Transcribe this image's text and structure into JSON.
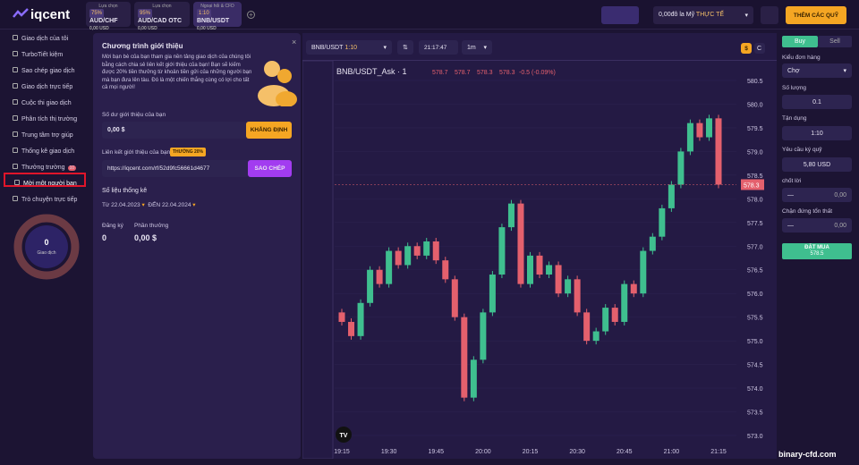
{
  "header": {
    "logo": "iqcent",
    "tabs": [
      {
        "label": "Lựa chọn",
        "badge": "75%",
        "pair": "AUD/CHF",
        "amount": "0,00 USD"
      },
      {
        "label": "Lựa chọn",
        "badge": "95%",
        "pair": "AUD/CAD OTC",
        "amount": "0,00 USD"
      },
      {
        "label": "Ngoại hối & CFD",
        "badge": "1:10",
        "pair": "BNB/USDT",
        "amount": "0,00 USD"
      }
    ],
    "balance": "0,00đô la Mỹ",
    "account": "THỰC TẾ",
    "deposit": "THÊM CÁC QUỸ"
  },
  "sidebar": {
    "items": [
      "Giao dịch của tôi",
      "TurboTiết kiệm",
      "Sao chép giao dịch",
      "Giao dịch trực tiếp",
      "Cuộc thi giao dịch",
      "Phân tích thị trường",
      "Trung tâm trợ giúp",
      "Thống kê giao dịch",
      "Thưởng trường",
      "Mời một người bạn",
      "Trò chuyện trực tiếp"
    ],
    "badge": "10",
    "trades": "0",
    "trades_label": "Giao dịch"
  },
  "referral": {
    "title": "Chương trình giới thiệu",
    "description": "Mời bạn bè của bạn tham gia nền tảng giao dịch của chúng tôi bằng cách chia sẻ liên kết giới thiệu của bạn! Bạn sẽ kiếm được 20% tiền thưởng từ khoản tiền gửi của những người bạn mà bạn đưa lên tàu. Đó là một chiến thắng cùng có lợi cho tất cả mọi người!",
    "balance_label": "Số dư giới thiệu của bạn",
    "balance": "0,00 $",
    "confirm": "KHẲNG ĐỊNH",
    "link_label": "Liên kết giới thiệu của bạn",
    "bonus": "THƯỞNG 20%",
    "link": "https://iqcent.com/rf/52d9fc56661d4677",
    "copy": "SAO CHÉP",
    "stats_title": "Số liệu thống kê",
    "from": "Từ",
    "from_date": "22.04.2023",
    "to": "ĐẾN",
    "to_date": "22.04.2024",
    "registrations_label": "Đăng ký",
    "registrations": "0",
    "rewards_label": "Phần thưởng",
    "rewards": "0,00 $"
  },
  "toolbar": {
    "pair": "BNB/USDT",
    "leverage": "1:10",
    "time": "21:17:47",
    "interval": "1m",
    "currency": "$",
    "mode": "C"
  },
  "chart": {
    "symbol": "BNB/USDT_Ask · 1",
    "o": "578.7",
    "h": "578.7",
    "l": "578.3",
    "c": "578.3",
    "change": "-0.5 (-0.09%)",
    "logo": "TV",
    "ylim": [
      573.0,
      580.5
    ],
    "yticks": [
      {
        "value": 580.5,
        "label": "580.5"
      },
      {
        "value": 580,
        "label": "580.0"
      },
      {
        "value": 579.5,
        "label": "579.5"
      },
      {
        "value": 579,
        "label": "579.0"
      },
      {
        "value": 578.5,
        "label": "578.5"
      },
      {
        "value": 578,
        "label": "578.0"
      },
      {
        "value": 577.5,
        "label": "577.5"
      },
      {
        "value": 577,
        "label": "577.0"
      },
      {
        "value": 576.5,
        "label": "576.5"
      },
      {
        "value": 576,
        "label": "576.0"
      },
      {
        "value": 575.5,
        "label": "575.5"
      },
      {
        "value": 575,
        "label": "575.0"
      },
      {
        "value": 574.5,
        "label": "574.5"
      },
      {
        "value": 574,
        "label": "574.0"
      },
      {
        "value": 573.5,
        "label": "573.5"
      },
      {
        "value": 573,
        "label": "573.0"
      }
    ],
    "xtick_labels": [
      "19:15",
      "19:30",
      "19:45",
      "20:00",
      "20:15",
      "20:30",
      "20:45",
      "21:00",
      "21:15"
    ],
    "last_price": 578.3,
    "candles": [
      [
        575.6,
        575.4
      ],
      [
        575.4,
        575.1
      ],
      [
        575.1,
        575.8
      ],
      [
        575.8,
        576.5
      ],
      [
        576.5,
        576.2
      ],
      [
        576.2,
        576.9
      ],
      [
        576.9,
        576.6
      ],
      [
        576.6,
        577.0
      ],
      [
        577.0,
        576.8
      ],
      [
        576.8,
        577.1
      ],
      [
        577.1,
        576.7
      ],
      [
        576.7,
        576.3
      ],
      [
        576.3,
        575.5
      ],
      [
        575.5,
        573.8
      ],
      [
        573.8,
        574.6
      ],
      [
        574.6,
        575.6
      ],
      [
        575.6,
        576.4
      ],
      [
        576.4,
        577.4
      ],
      [
        577.4,
        577.9
      ],
      [
        577.9,
        576.2
      ],
      [
        576.2,
        576.8
      ],
      [
        576.8,
        576.4
      ],
      [
        576.4,
        576.6
      ],
      [
        576.6,
        576.0
      ],
      [
        576.0,
        576.3
      ],
      [
        576.3,
        575.6
      ],
      [
        575.6,
        575.0
      ],
      [
        575.0,
        575.2
      ],
      [
        575.2,
        575.7
      ],
      [
        575.7,
        575.4
      ],
      [
        575.4,
        576.2
      ],
      [
        576.2,
        576.0
      ],
      [
        576.0,
        576.9
      ],
      [
        576.9,
        577.2
      ],
      [
        577.2,
        577.8
      ],
      [
        577.8,
        578.3
      ],
      [
        578.3,
        579.0
      ],
      [
        579.0,
        579.6
      ],
      [
        579.6,
        579.3
      ],
      [
        579.3,
        579.7
      ],
      [
        579.7,
        578.3
      ]
    ]
  },
  "order": {
    "buy": "Buy",
    "sell": "Sell",
    "type_label": "Kiểu đơn hàng",
    "type": "Chợ",
    "amount_label": "Số lượng",
    "amount": "0.1",
    "leverage_label": "Tận dụng",
    "leverage": "1:10",
    "margin_label": "Yêu cầu ký quỹ",
    "margin": "5,80 USD",
    "tp_label": "chốt lời",
    "tp_dash": "—",
    "tp": "0,00",
    "sl_label": "Chặn đứng tổn thất",
    "sl_dash": "—",
    "sl": "0,00",
    "submit": "ĐẶT MUA",
    "submit_price": "578.5"
  },
  "watermark": "binary-cfd.com"
}
